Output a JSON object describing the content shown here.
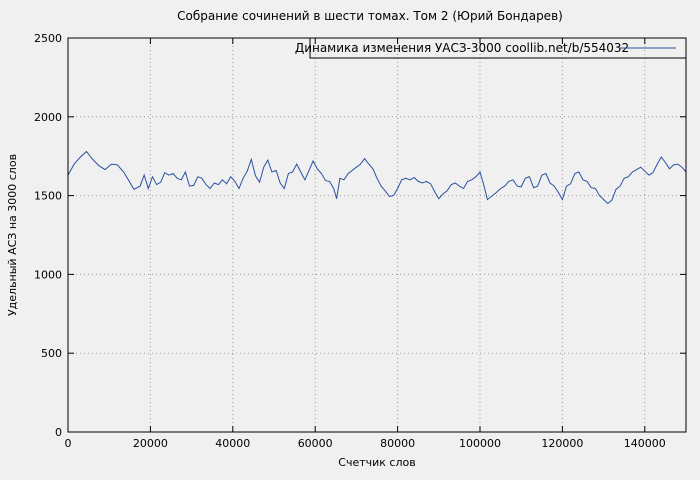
{
  "chart_data": {
    "type": "line",
    "title": "Собрание сочинений в шести томах. Том 2 (Юрий Бондарев)",
    "legend_label": "Динамика изменения УАСЗ-3000  coollib.net/b/554032",
    "xlabel": "Счетчик слов",
    "ylabel": "Удельный АСЗ на 3000 слов",
    "xlim": [
      0,
      150000
    ],
    "ylim": [
      0,
      2500
    ],
    "xticks": [
      0,
      20000,
      40000,
      60000,
      80000,
      100000,
      120000,
      140000
    ],
    "yticks": [
      0,
      500,
      1000,
      1500,
      2000,
      2500
    ],
    "grid": true,
    "legend_position": "top-right-inside-box",
    "line_color": "#2a52a0",
    "background_color": "#f0f0f0",
    "points": [
      [
        0,
        1630
      ],
      [
        1500,
        1700
      ],
      [
        3000,
        1745
      ],
      [
        4500,
        1780
      ],
      [
        6000,
        1730
      ],
      [
        7500,
        1690
      ],
      [
        9000,
        1665
      ],
      [
        10500,
        1700
      ],
      [
        12000,
        1695
      ],
      [
        13500,
        1650
      ],
      [
        15000,
        1585
      ],
      [
        16000,
        1540
      ],
      [
        17500,
        1560
      ],
      [
        18500,
        1630
      ],
      [
        19500,
        1545
      ],
      [
        20500,
        1620
      ],
      [
        21500,
        1570
      ],
      [
        22500,
        1585
      ],
      [
        23500,
        1645
      ],
      [
        24500,
        1630
      ],
      [
        25500,
        1640
      ],
      [
        26500,
        1610
      ],
      [
        27500,
        1600
      ],
      [
        28500,
        1650
      ],
      [
        29500,
        1560
      ],
      [
        30500,
        1565
      ],
      [
        31500,
        1620
      ],
      [
        32500,
        1610
      ],
      [
        33500,
        1570
      ],
      [
        34500,
        1545
      ],
      [
        35500,
        1580
      ],
      [
        36500,
        1570
      ],
      [
        37500,
        1600
      ],
      [
        38500,
        1575
      ],
      [
        39500,
        1620
      ],
      [
        40500,
        1590
      ],
      [
        41500,
        1545
      ],
      [
        42500,
        1610
      ],
      [
        43500,
        1655
      ],
      [
        44500,
        1730
      ],
      [
        45500,
        1625
      ],
      [
        46500,
        1585
      ],
      [
        47500,
        1680
      ],
      [
        48500,
        1725
      ],
      [
        49500,
        1650
      ],
      [
        50500,
        1660
      ],
      [
        51500,
        1580
      ],
      [
        52500,
        1545
      ],
      [
        53500,
        1640
      ],
      [
        54500,
        1650
      ],
      [
        55500,
        1700
      ],
      [
        56500,
        1650
      ],
      [
        57500,
        1600
      ],
      [
        58500,
        1660
      ],
      [
        59500,
        1720
      ],
      [
        60500,
        1670
      ],
      [
        61500,
        1640
      ],
      [
        62500,
        1595
      ],
      [
        63500,
        1590
      ],
      [
        64500,
        1545
      ],
      [
        65200,
        1480
      ],
      [
        66000,
        1610
      ],
      [
        67000,
        1600
      ],
      [
        68000,
        1640
      ],
      [
        69000,
        1660
      ],
      [
        70000,
        1680
      ],
      [
        71000,
        1700
      ],
      [
        72000,
        1735
      ],
      [
        73000,
        1700
      ],
      [
        74000,
        1670
      ],
      [
        75000,
        1610
      ],
      [
        76000,
        1560
      ],
      [
        77000,
        1530
      ],
      [
        78000,
        1495
      ],
      [
        79000,
        1500
      ],
      [
        80000,
        1545
      ],
      [
        81000,
        1600
      ],
      [
        82000,
        1610
      ],
      [
        83000,
        1600
      ],
      [
        84000,
        1615
      ],
      [
        85000,
        1590
      ],
      [
        86000,
        1580
      ],
      [
        87000,
        1590
      ],
      [
        88000,
        1575
      ],
      [
        89000,
        1525
      ],
      [
        90000,
        1480
      ],
      [
        91000,
        1510
      ],
      [
        92000,
        1530
      ],
      [
        93000,
        1570
      ],
      [
        94000,
        1580
      ],
      [
        95000,
        1560
      ],
      [
        96000,
        1545
      ],
      [
        97000,
        1590
      ],
      [
        98000,
        1600
      ],
      [
        99000,
        1620
      ],
      [
        100000,
        1650
      ],
      [
        101000,
        1560
      ],
      [
        101800,
        1475
      ],
      [
        103000,
        1500
      ],
      [
        104000,
        1520
      ],
      [
        105000,
        1545
      ],
      [
        106000,
        1560
      ],
      [
        107000,
        1590
      ],
      [
        108000,
        1600
      ],
      [
        109000,
        1560
      ],
      [
        110000,
        1555
      ],
      [
        111000,
        1610
      ],
      [
        112000,
        1620
      ],
      [
        113000,
        1550
      ],
      [
        114000,
        1560
      ],
      [
        115000,
        1630
      ],
      [
        116000,
        1640
      ],
      [
        117000,
        1580
      ],
      [
        118000,
        1560
      ],
      [
        119000,
        1520
      ],
      [
        120000,
        1475
      ],
      [
        121000,
        1560
      ],
      [
        122000,
        1575
      ],
      [
        123000,
        1640
      ],
      [
        124000,
        1650
      ],
      [
        125000,
        1600
      ],
      [
        126000,
        1590
      ],
      [
        127000,
        1550
      ],
      [
        128000,
        1545
      ],
      [
        129000,
        1500
      ],
      [
        130000,
        1475
      ],
      [
        131000,
        1450
      ],
      [
        132000,
        1470
      ],
      [
        133000,
        1540
      ],
      [
        134000,
        1560
      ],
      [
        135000,
        1610
      ],
      [
        136000,
        1620
      ],
      [
        137000,
        1650
      ],
      [
        138000,
        1665
      ],
      [
        139000,
        1680
      ],
      [
        140000,
        1655
      ],
      [
        141000,
        1630
      ],
      [
        142000,
        1645
      ],
      [
        143000,
        1700
      ],
      [
        144000,
        1745
      ],
      [
        145000,
        1710
      ],
      [
        146000,
        1670
      ],
      [
        147000,
        1695
      ],
      [
        148000,
        1700
      ],
      [
        149000,
        1680
      ],
      [
        150000,
        1650
      ]
    ]
  }
}
